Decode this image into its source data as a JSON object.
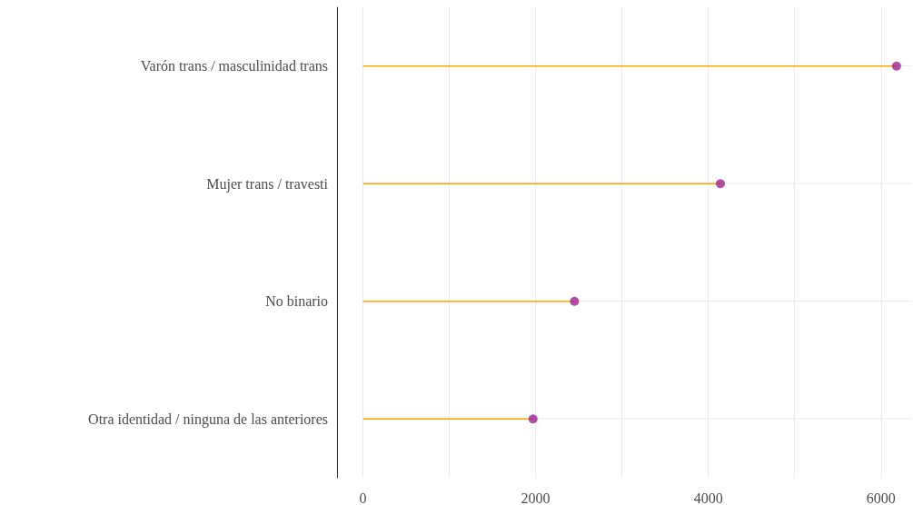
{
  "chart_data": {
    "type": "lollipop",
    "orientation": "horizontal",
    "categories": [
      "Varón trans / masculinidad trans",
      "Mujer trans / travesti",
      "No binario",
      "Otra identidad / ninguna de las anteriores"
    ],
    "series": [
      {
        "color": "#9b2390",
        "values": [
          6180,
          4140,
          2450,
          1970
        ]
      }
    ],
    "xlim": [
      -300,
      6360
    ],
    "xticks": [
      0,
      {
        "value": 1000,
        "label": null
      },
      2000,
      {
        "value": 3000,
        "label": null
      },
      4000,
      {
        "value": 5000,
        "label": null
      },
      6000
    ],
    "grid": true,
    "marker": "circle"
  }
}
